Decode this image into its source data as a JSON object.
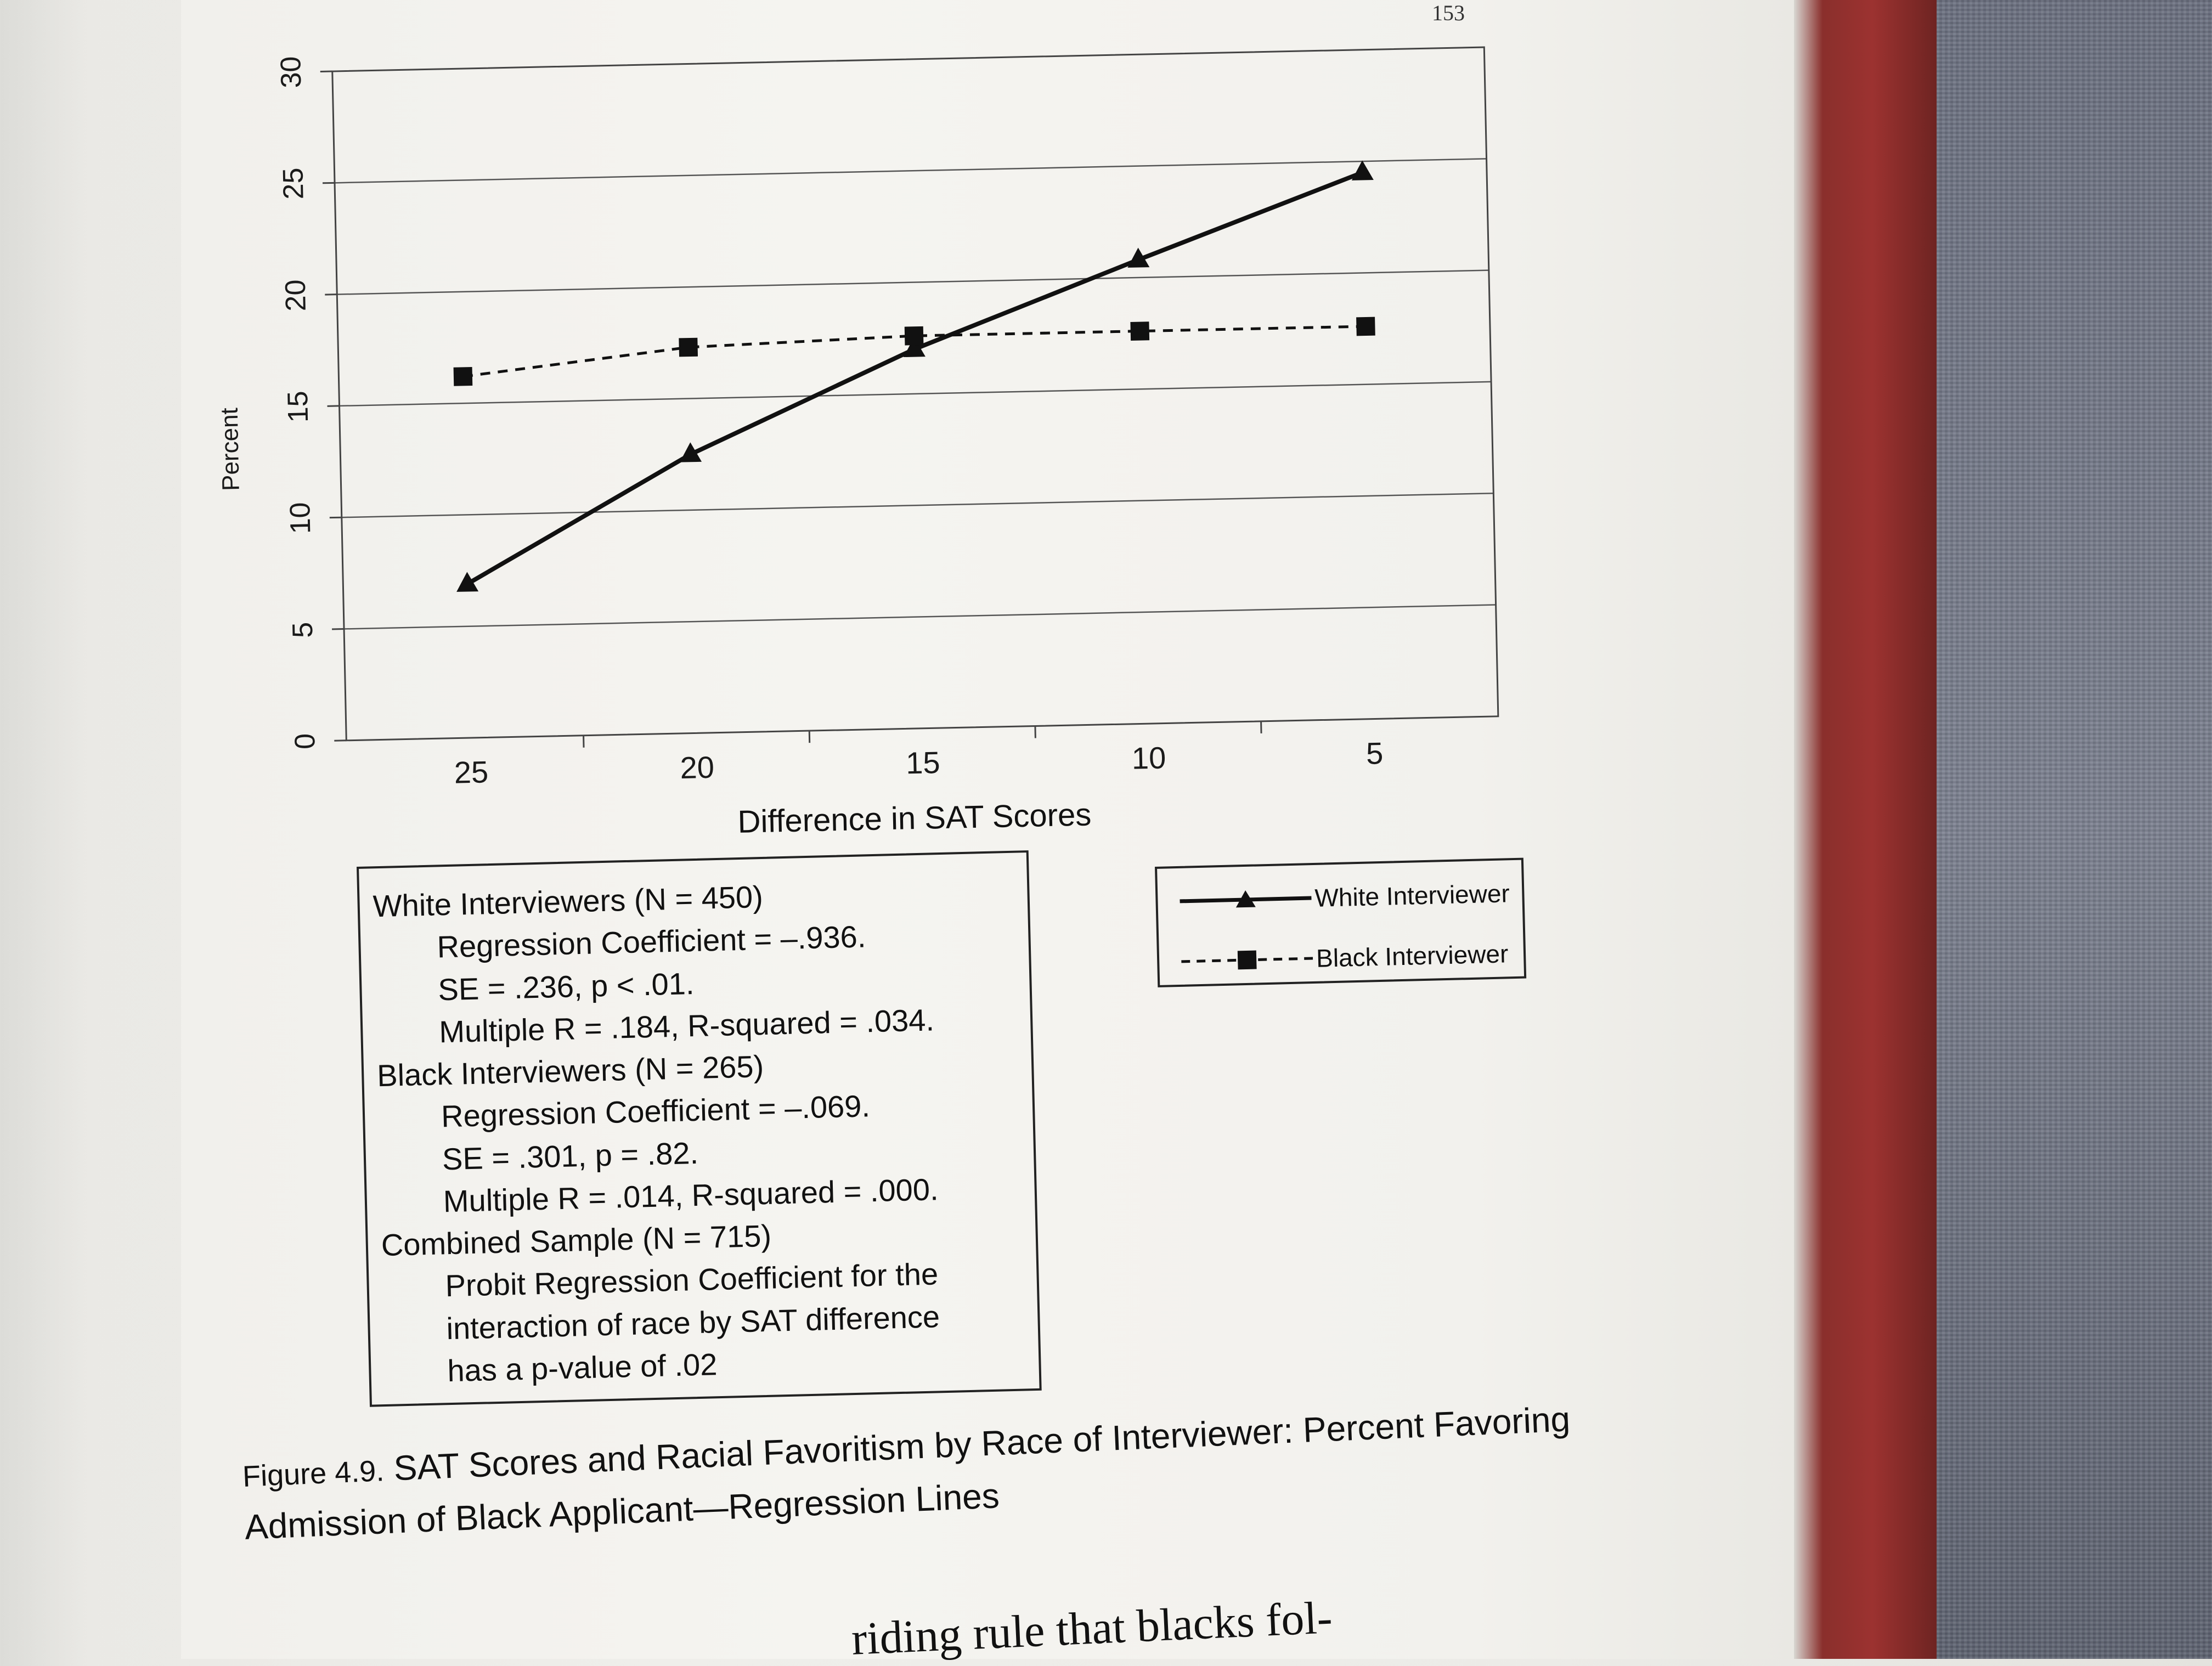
{
  "page_number": "153",
  "chart_data": {
    "type": "line",
    "x": [
      25,
      20,
      15,
      10,
      5
    ],
    "xlabel": "Difference in SAT Scores",
    "ylabel": "Percent",
    "ylim": [
      0,
      30
    ],
    "y_ticks": [
      0,
      5,
      10,
      15,
      20,
      25,
      30
    ],
    "x_ticks": [
      25,
      20,
      15,
      10,
      5
    ],
    "x_reversed": true,
    "grid": true,
    "legend_position": "right",
    "series": [
      {
        "name": "White Interviewer",
        "values": [
          6.9,
          12.5,
          17.0,
          20.8,
          24.5
        ],
        "style": "solid",
        "marker": "triangle",
        "color": "#111111"
      },
      {
        "name": "Black Interviewer",
        "values": [
          16.2,
          17.3,
          17.6,
          17.6,
          17.6
        ],
        "style": "dashed",
        "marker": "square",
        "color": "#111111"
      }
    ]
  },
  "stats": {
    "white_header": "White Interviewers (N = 450)",
    "white_coef": "Regression Coefficient = –.936.",
    "white_se": "SE = .236, p < .01.",
    "white_r": "Multiple R = .184, R-squared = .034.",
    "black_header": "Black Interviewers (N = 265)",
    "black_coef": "Regression Coefficient = –.069.",
    "black_se": "SE = .301, p = .82.",
    "black_r": "Multiple R = .014, R-squared = .000.",
    "combined_header": "Combined Sample (N = 715)",
    "combined_1": "Probit Regression Coefficient for the",
    "combined_2": "interaction of race by SAT difference",
    "combined_3": "has a p-value of .02"
  },
  "caption": {
    "figure_label": "Figure 4.9.",
    "line1": "SAT Scores and Racial Favoritism by Race of Interviewer: Percent Favoring",
    "line2": "Admission of Black Applicant—Regression Lines"
  },
  "body_text": "riding rule that blacks fol-"
}
